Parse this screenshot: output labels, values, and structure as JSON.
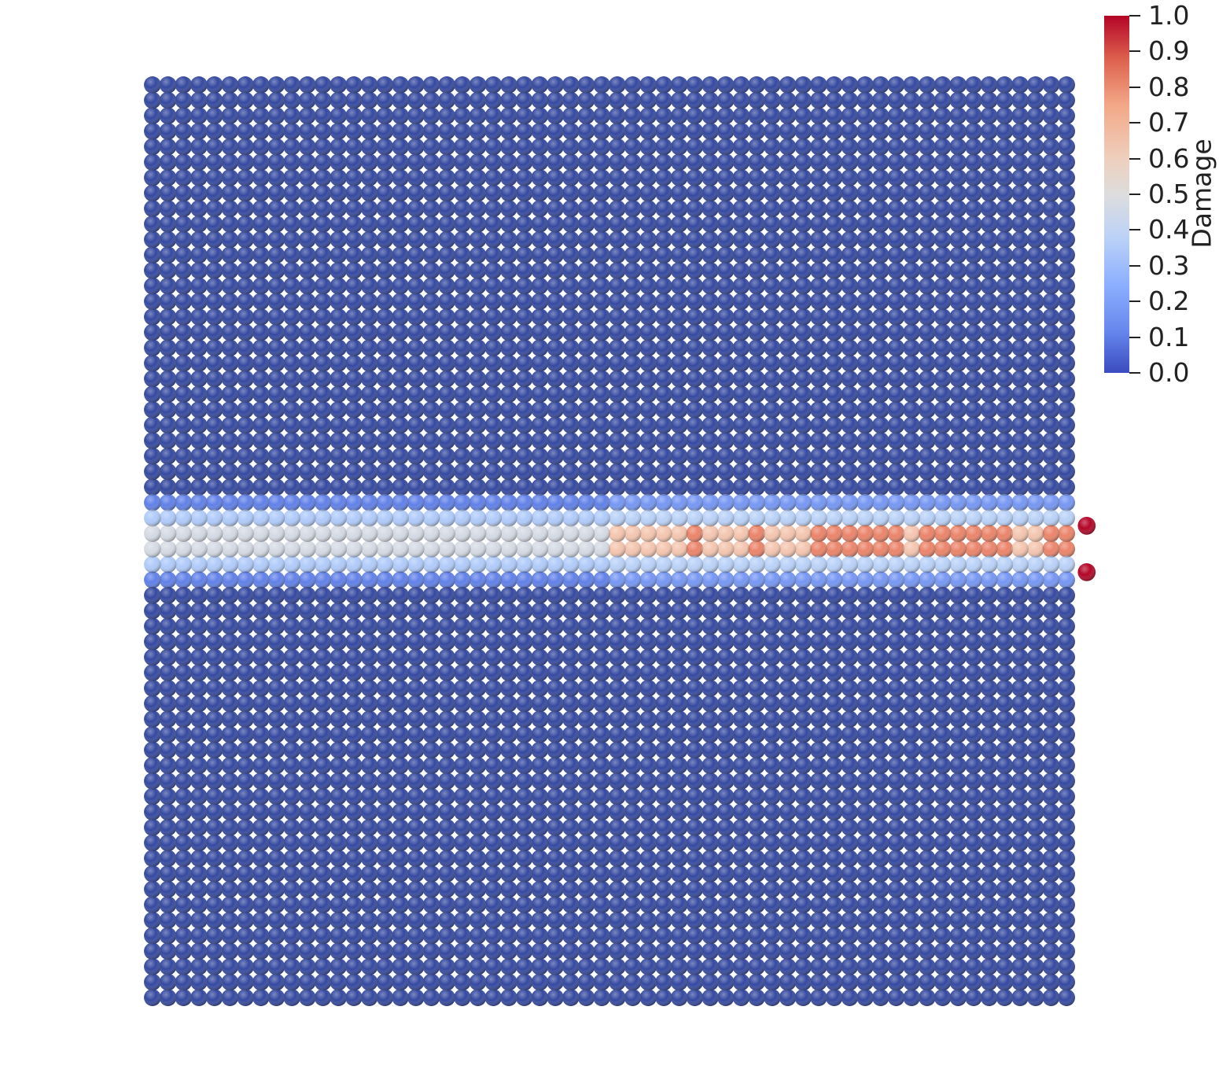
{
  "chart_data": {
    "type": "heatmap",
    "title": "",
    "xlabel": "",
    "ylabel": "",
    "grid": {
      "columns": 60,
      "rows": 60,
      "background_damage": 0.0
    },
    "damage_band": [
      {
        "row": 27,
        "col_start": 0,
        "col_end": 29,
        "value": 0.12
      },
      {
        "row": 27,
        "col_start": 30,
        "col_end": 59,
        "value": 0.18
      },
      {
        "row": 28,
        "col_start": 0,
        "col_end": 29,
        "value": 0.35
      },
      {
        "row": 28,
        "col_start": 30,
        "col_end": 59,
        "value": 0.38
      },
      {
        "row": 29,
        "col_start": 0,
        "col_end": 29,
        "value": 0.47
      },
      {
        "row": 29,
        "col_start": 30,
        "col_end": 59,
        "value": 0.62
      },
      {
        "row": 30,
        "col_start": 0,
        "col_end": 29,
        "value": 0.47
      },
      {
        "row": 30,
        "col_start": 30,
        "col_end": 59,
        "value": 0.62
      },
      {
        "row": 31,
        "col_start": 0,
        "col_end": 29,
        "value": 0.35
      },
      {
        "row": 31,
        "col_start": 30,
        "col_end": 59,
        "value": 0.38
      },
      {
        "row": 32,
        "col_start": 0,
        "col_end": 29,
        "value": 0.12
      },
      {
        "row": 32,
        "col_start": 30,
        "col_end": 59,
        "value": 0.18
      }
    ],
    "high_damage_cells": [
      {
        "row": 29,
        "cols": [
          35,
          39,
          43,
          44,
          45,
          46,
          47,
          48,
          50,
          51,
          52,
          53,
          54,
          55,
          58,
          59
        ],
        "value": 0.8
      },
      {
        "row": 30,
        "cols": [
          35,
          39,
          43,
          44,
          45,
          46,
          47,
          48,
          50,
          51,
          52,
          53,
          54,
          55,
          58,
          59
        ],
        "value": 0.8
      }
    ],
    "detached_particles": [
      {
        "row": 28.5,
        "col": 60.3,
        "value": 1.0
      },
      {
        "row": 31.5,
        "col": 60.3,
        "value": 1.0
      }
    ],
    "colorbar": {
      "title": "Damage",
      "range": [
        0.0,
        1.0
      ],
      "colormap": "coolwarm",
      "tick_labels": [
        "1.0",
        "0.9",
        "0.8",
        "0.7",
        "0.6",
        "0.5",
        "0.4",
        "0.3",
        "0.2",
        "0.1",
        "0.0"
      ]
    }
  }
}
